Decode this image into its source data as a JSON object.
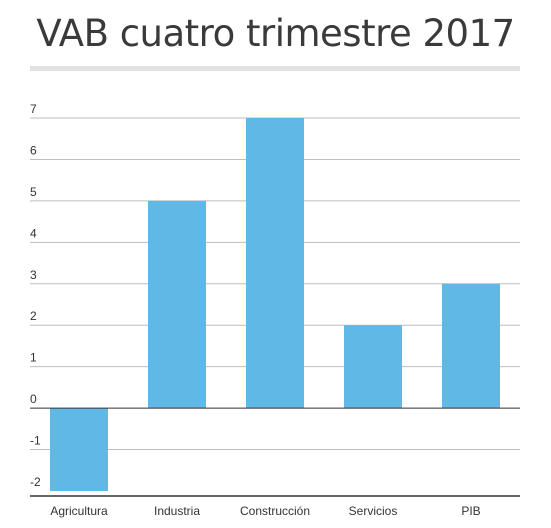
{
  "title": "VAB cuatro trimestre 2017",
  "colors": {
    "bar": "#5fb8e5",
    "grid": "#bdbdbd",
    "axis": "#333333",
    "text": "#333333"
  },
  "chart_data": {
    "type": "bar",
    "title": "VAB cuatro trimestre 2017",
    "categories": [
      "Agricultura",
      "Industria",
      "Construcción",
      "Servicios",
      "PIB"
    ],
    "values": [
      -2,
      5,
      7,
      2,
      3
    ],
    "ylim": [
      -2,
      7
    ],
    "yticks": [
      7,
      6,
      5,
      4,
      3,
      2,
      1,
      0,
      -1,
      -2
    ],
    "grid": true,
    "xlabel": "",
    "ylabel": ""
  }
}
